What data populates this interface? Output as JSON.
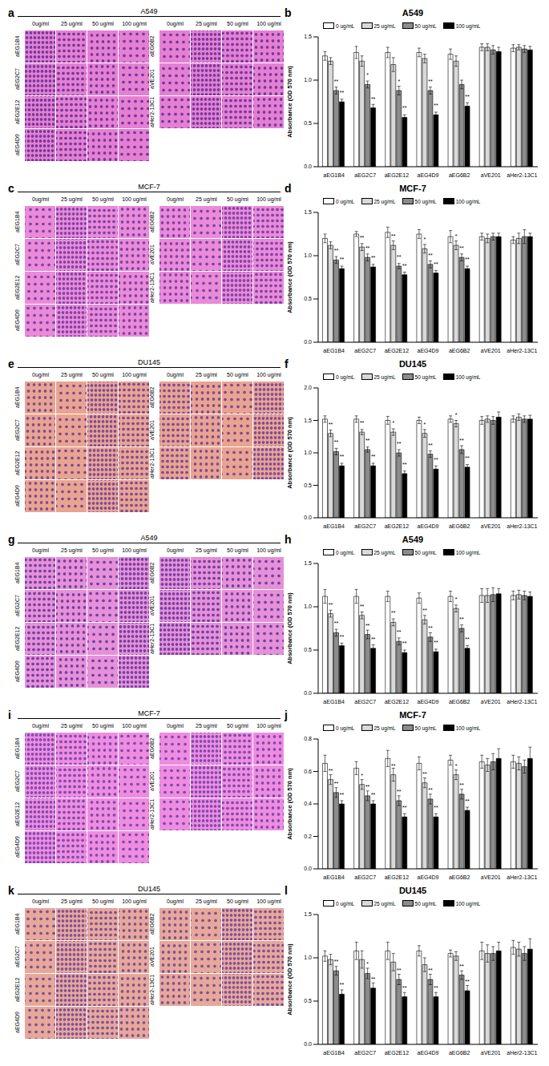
{
  "image_panels": [
    {
      "letter": "a",
      "title": "A549",
      "columns": [
        "0ug/ml",
        "25 ug/ml",
        "50 ug/ml",
        "100 ug/ml"
      ],
      "left_rows": [
        "aEG1B4",
        "aEG2C7",
        "aEG2E12",
        "aEG4D9"
      ],
      "right_rows": [
        "aEG6B2",
        "aVE201",
        "aHer2-13C1"
      ]
    },
    {
      "letter": "c",
      "title": "MCF-7",
      "columns": [
        "0ug/ml",
        "25 ug/ml",
        "50 ug/ml",
        "100 ug/ml"
      ],
      "left_rows": [
        "aEG1B4",
        "aEG2C7",
        "aEG2E12",
        "aEG4D9"
      ],
      "right_rows": [
        "aEG6B2",
        "aVE201",
        "aHer2-13C1"
      ]
    },
    {
      "letter": "e",
      "title": "DU145",
      "columns": [
        "0ug/ml",
        "25 ug/ml",
        "50 ug/ml",
        "100 ug/ml"
      ],
      "left_rows": [
        "aEG1B4",
        "aEG2C7",
        "aEG2E12",
        "aEG4D9"
      ],
      "right_rows": [
        "aEG6B2",
        "aVE201",
        "aHer2-13C1"
      ]
    },
    {
      "letter": "g",
      "title": "A549",
      "columns": [
        "0ug/ml",
        "25 ug/ml",
        "50 ug/ml",
        "100 ug/ml"
      ],
      "left_rows": [
        "aEG1B4",
        "aEG2C7",
        "aEG2E12",
        "aEG4D9"
      ],
      "right_rows": [
        "aEG6B2",
        "aVE201",
        "aHer2-13C1"
      ]
    },
    {
      "letter": "i",
      "title": "MCF-7",
      "columns": [
        "0ug/ml",
        "25 ug/ml",
        "50 ug/ml",
        "100 ug/ml"
      ],
      "left_rows": [
        "aEG1B4",
        "aEG2C7",
        "aEG2E12",
        "aEG4D9"
      ],
      "right_rows": [
        "aEG6B2",
        "aVE201",
        "aHer2-13C1"
      ]
    },
    {
      "letter": "k",
      "title": "DU145",
      "columns": [
        "0ug/ml",
        "25 ug/ml",
        "50 ug/ml",
        "100 ug/ml"
      ],
      "left_rows": [
        "aEG1B4",
        "aEG2C7",
        "aEG2E12",
        "aEG4D9"
      ],
      "right_rows": [
        "aEG6B2",
        "aVE201",
        "aHer2-13C1"
      ]
    }
  ],
  "chart_data": [
    {
      "letter": "b",
      "type": "bar",
      "title": "A549",
      "y_label": "Absorbance (OD 570 nm)",
      "legend": "top-left",
      "categories": [
        "aEG1B4",
        "aEG2C7",
        "aEG2E12",
        "aEG4D9",
        "aEG6B2",
        "aVE201",
        "aHer2-13C1"
      ],
      "ylim": [
        0,
        1.5
      ],
      "yticks": [
        {
          "value": 0,
          "label": "0.0"
        },
        {
          "value": 0.5,
          "label": "0.5"
        },
        {
          "value": 1,
          "label": "1.0"
        },
        {
          "value": 1.5,
          "label": "1.5"
        }
      ],
      "series": [
        {
          "name": "0 ug/mL",
          "color": "#ffffff",
          "values": [
            1.28,
            1.32,
            1.32,
            1.32,
            1.3,
            1.38,
            1.37
          ],
          "errors": [
            0.05,
            0.07,
            0.06,
            0.05,
            0.06,
            0.04,
            0.04
          ],
          "significance": [
            null,
            null,
            null,
            null,
            null,
            null,
            null
          ]
        },
        {
          "name": "25 ug/mL",
          "color": "#d9d9d9",
          "values": [
            1.22,
            1.22,
            1.18,
            1.25,
            1.22,
            1.38,
            1.38
          ],
          "errors": [
            0.04,
            0.06,
            0.08,
            0.05,
            0.06,
            0.04,
            0.03
          ],
          "significance": [
            null,
            null,
            null,
            null,
            null,
            null,
            null
          ]
        },
        {
          "name": "50 ug/mL",
          "color": "#8c8c8c",
          "values": [
            0.88,
            0.95,
            0.88,
            0.88,
            0.95,
            1.35,
            1.36
          ],
          "errors": [
            0.04,
            0.04,
            0.05,
            0.04,
            0.05,
            0.05,
            0.04
          ],
          "significance": [
            "**",
            "*",
            "*",
            "**",
            null,
            null,
            null
          ]
        },
        {
          "name": "100 ug/mL",
          "color": "#000000",
          "values": [
            0.75,
            0.68,
            0.57,
            0.6,
            0.7,
            1.33,
            1.35
          ],
          "errors": [
            0.03,
            0.04,
            0.03,
            0.03,
            0.04,
            0.05,
            0.04
          ],
          "significance": [
            "**",
            "**",
            "**",
            "**",
            "**",
            null,
            null
          ]
        }
      ]
    },
    {
      "letter": "d",
      "type": "bar",
      "title": "MCF-7",
      "y_label": "Absorbance (OD 570 nm)",
      "legend": "top-left",
      "categories": [
        "aEG1B4",
        "aEG2C7",
        "aEG2E12",
        "aEG4D9",
        "aEG6B2",
        "aVE201",
        "aHer2-13C1"
      ],
      "ylim": [
        0,
        1.5
      ],
      "yticks": [
        {
          "value": 0,
          "label": "0.0"
        },
        {
          "value": 0.5,
          "label": "0.5"
        },
        {
          "value": 1,
          "label": "1.0"
        },
        {
          "value": 1.5,
          "label": "1.5"
        }
      ],
      "series": [
        {
          "name": "0 ug/mL",
          "color": "#ffffff",
          "values": [
            1.2,
            1.25,
            1.27,
            1.25,
            1.22,
            1.22,
            1.18
          ],
          "errors": [
            0.05,
            0.03,
            0.06,
            0.05,
            0.07,
            0.04,
            0.04
          ],
          "significance": [
            null,
            null,
            null,
            null,
            null,
            null,
            null
          ]
        },
        {
          "name": "25 ug/mL",
          "color": "#d9d9d9",
          "values": [
            1.12,
            1.1,
            1.12,
            1.08,
            1.12,
            1.2,
            1.2
          ],
          "errors": [
            0.04,
            0.04,
            0.05,
            0.05,
            0.05,
            0.05,
            0.06
          ],
          "significance": [
            null,
            "**",
            "**",
            "*",
            "*",
            null,
            null
          ]
        },
        {
          "name": "50 ug/mL",
          "color": "#8c8c8c",
          "values": [
            0.95,
            0.98,
            0.88,
            0.9,
            0.98,
            1.22,
            1.22
          ],
          "errors": [
            0.04,
            0.04,
            0.03,
            0.04,
            0.04,
            0.04,
            0.08
          ],
          "significance": [
            "**",
            "**",
            "**",
            "**",
            "**",
            null,
            null
          ]
        },
        {
          "name": "100 ug/mL",
          "color": "#000000",
          "values": [
            0.85,
            0.87,
            0.78,
            0.8,
            0.85,
            1.22,
            1.22
          ],
          "errors": [
            0.03,
            0.03,
            0.03,
            0.03,
            0.03,
            0.04,
            0.04
          ],
          "significance": [
            "**",
            "**",
            "**",
            "**",
            "**",
            null,
            null
          ]
        }
      ]
    },
    {
      "letter": "f",
      "type": "bar",
      "title": "DU145",
      "y_label": "Absorbance (OD 570 nm)",
      "legend": "top-left",
      "categories": [
        "aEG1B4",
        "aEG2C7",
        "aEG2E12",
        "aEG4D9",
        "aEG6B2",
        "aVE201",
        "aHer2-13C1"
      ],
      "ylim": [
        0,
        2
      ],
      "yticks": [
        {
          "value": 0,
          "label": "0.0"
        },
        {
          "value": 0.5,
          "label": "0.5"
        },
        {
          "value": 1,
          "label": "1.0"
        },
        {
          "value": 1.5,
          "label": "1.5"
        },
        {
          "value": 2,
          "label": "2.0"
        }
      ],
      "series": [
        {
          "name": "0 ug/mL",
          "color": "#ffffff",
          "values": [
            1.52,
            1.52,
            1.5,
            1.5,
            1.52,
            1.5,
            1.52
          ],
          "errors": [
            0.05,
            0.05,
            0.06,
            0.05,
            0.05,
            0.06,
            0.05
          ],
          "significance": [
            null,
            null,
            null,
            null,
            null,
            null,
            null
          ]
        },
        {
          "name": "25 ug/mL",
          "color": "#d9d9d9",
          "values": [
            1.3,
            1.32,
            1.32,
            1.3,
            1.45,
            1.52,
            1.55
          ],
          "errors": [
            0.05,
            0.04,
            0.05,
            0.06,
            0.05,
            0.05,
            0.05
          ],
          "significance": [
            "**",
            "**",
            "*",
            "*",
            "*",
            null,
            null
          ]
        },
        {
          "name": "50 ug/mL",
          "color": "#8c8c8c",
          "values": [
            1.02,
            1.05,
            1.0,
            0.98,
            1.05,
            1.5,
            1.52
          ],
          "errors": [
            0.05,
            0.04,
            0.05,
            0.05,
            0.06,
            0.06,
            0.05
          ],
          "significance": [
            "**",
            "**",
            "**",
            "**",
            "**",
            null,
            null
          ]
        },
        {
          "name": "100 ug/mL",
          "color": "#000000",
          "values": [
            0.8,
            0.8,
            0.68,
            0.75,
            0.78,
            1.55,
            1.52
          ],
          "errors": [
            0.04,
            0.04,
            0.04,
            0.05,
            0.04,
            0.08,
            0.06
          ],
          "significance": [
            "**",
            "**",
            "**",
            "**",
            "**",
            null,
            null
          ]
        }
      ]
    },
    {
      "letter": "h",
      "type": "bar",
      "title": "A549",
      "y_label": "Absorbance (OD 570 nm)",
      "legend": "top-left",
      "categories": [
        "aEG1B4",
        "aEG2C7",
        "aEG2E12",
        "aEG4D9",
        "aEG6B2",
        "aVE201",
        "aHer2-13C1"
      ],
      "ylim": [
        0,
        1.5
      ],
      "yticks": [
        {
          "value": 0,
          "label": "0.0"
        },
        {
          "value": 0.5,
          "label": "0.5"
        },
        {
          "value": 1,
          "label": "1.0"
        },
        {
          "value": 1.5,
          "label": "1.5"
        }
      ],
      "series": [
        {
          "name": "0 ug/mL",
          "color": "#ffffff",
          "values": [
            1.12,
            1.12,
            1.12,
            1.1,
            1.12,
            1.13,
            1.13
          ],
          "errors": [
            0.08,
            0.08,
            0.06,
            0.06,
            0.06,
            0.08,
            0.05
          ],
          "significance": [
            null,
            null,
            null,
            null,
            null,
            null,
            null
          ]
        },
        {
          "name": "25 ug/mL",
          "color": "#d9d9d9",
          "values": [
            0.92,
            0.9,
            0.82,
            0.85,
            0.98,
            1.13,
            1.14
          ],
          "errors": [
            0.04,
            0.04,
            0.04,
            0.05,
            0.04,
            0.08,
            0.05
          ],
          "significance": [
            "**",
            "**",
            "**",
            "**",
            "*",
            null,
            null
          ]
        },
        {
          "name": "50 ug/mL",
          "color": "#8c8c8c",
          "values": [
            0.7,
            0.68,
            0.6,
            0.65,
            0.75,
            1.14,
            1.13
          ],
          "errors": [
            0.04,
            0.05,
            0.04,
            0.05,
            0.04,
            0.08,
            0.05
          ],
          "significance": [
            "**",
            "**",
            "**",
            "**",
            "**",
            null,
            null
          ]
        },
        {
          "name": "100 ug/mL",
          "color": "#000000",
          "values": [
            0.55,
            0.52,
            0.47,
            0.48,
            0.52,
            1.15,
            1.12
          ],
          "errors": [
            0.03,
            0.04,
            0.03,
            0.03,
            0.03,
            0.06,
            0.05
          ],
          "significance": [
            "**",
            "**",
            "**",
            "**",
            "**",
            null,
            null
          ]
        }
      ]
    },
    {
      "letter": "j",
      "type": "bar",
      "title": "MCF-7",
      "y_label": "Absorbance (OD 570 nm)",
      "legend": "top-left",
      "categories": [
        "aEG1B4",
        "aEG2C7",
        "aEG2E12",
        "aEG4D9",
        "aEG6B2",
        "aVE201",
        "aHer2-13C1"
      ],
      "ylim": [
        0,
        0.8
      ],
      "yticks": [
        {
          "value": 0,
          "label": "0.0"
        },
        {
          "value": 0.2,
          "label": "0.2"
        },
        {
          "value": 0.4,
          "label": "0.4"
        },
        {
          "value": 0.6,
          "label": "0.6"
        },
        {
          "value": 0.8,
          "label": "0.8"
        }
      ],
      "series": [
        {
          "name": "0 ug/mL",
          "color": "#ffffff",
          "values": [
            0.65,
            0.62,
            0.68,
            0.65,
            0.67,
            0.66,
            0.66
          ],
          "errors": [
            0.05,
            0.04,
            0.05,
            0.04,
            0.03,
            0.04,
            0.04
          ],
          "significance": [
            null,
            null,
            null,
            null,
            null,
            null,
            null
          ]
        },
        {
          "name": "25 ug/mL",
          "color": "#d9d9d9",
          "values": [
            0.55,
            0.52,
            0.58,
            0.53,
            0.58,
            0.64,
            0.65
          ],
          "errors": [
            0.03,
            0.03,
            0.04,
            0.03,
            0.03,
            0.04,
            0.04
          ],
          "significance": [
            "**",
            "*",
            "**",
            "**",
            "*",
            null,
            null
          ]
        },
        {
          "name": "50 ug/mL",
          "color": "#8c8c8c",
          "values": [
            0.47,
            0.45,
            0.42,
            0.43,
            0.46,
            0.66,
            0.63
          ],
          "errors": [
            0.03,
            0.03,
            0.03,
            0.03,
            0.03,
            0.05,
            0.04
          ],
          "significance": [
            "**",
            "**",
            "**",
            "**",
            "**",
            null,
            null
          ]
        },
        {
          "name": "100 ug/mL",
          "color": "#000000",
          "values": [
            0.4,
            0.4,
            0.32,
            0.32,
            0.36,
            0.68,
            0.68
          ],
          "errors": [
            0.02,
            0.02,
            0.02,
            0.02,
            0.02,
            0.06,
            0.07
          ],
          "significance": [
            "**",
            "**",
            "**",
            "**",
            "**",
            null,
            null
          ]
        }
      ]
    },
    {
      "letter": "l",
      "type": "bar",
      "title": "DU145",
      "y_label": "Absorbance (OD 570 nm)",
      "legend": "top-left",
      "categories": [
        "aEG1B4",
        "aEG2C7",
        "aEG2E12",
        "aEG4D9",
        "aEG6B2",
        "aVE201",
        "aHer2-13C1"
      ],
      "ylim": [
        0,
        1.5
      ],
      "yticks": [
        {
          "value": 0,
          "label": "0.0"
        },
        {
          "value": 0.5,
          "label": "0.5"
        },
        {
          "value": 1,
          "label": "1.0"
        },
        {
          "value": 1.5,
          "label": "1.5"
        }
      ],
      "series": [
        {
          "name": "0 ug/mL",
          "color": "#ffffff",
          "values": [
            1.02,
            1.08,
            1.08,
            1.08,
            1.05,
            1.08,
            1.12
          ],
          "errors": [
            0.06,
            0.1,
            0.1,
            0.06,
            0.04,
            0.1,
            0.08
          ],
          "significance": [
            null,
            null,
            null,
            null,
            null,
            null,
            null
          ]
        },
        {
          "name": "25 ug/mL",
          "color": "#d9d9d9",
          "values": [
            0.98,
            0.98,
            0.95,
            0.92,
            1.02,
            1.05,
            1.1
          ],
          "errors": [
            0.06,
            0.1,
            0.1,
            0.08,
            0.05,
            0.1,
            0.08
          ],
          "significance": [
            null,
            null,
            null,
            null,
            null,
            null,
            null
          ]
        },
        {
          "name": "50 ug/mL",
          "color": "#8c8c8c",
          "values": [
            0.85,
            0.82,
            0.75,
            0.75,
            0.8,
            1.05,
            1.05
          ],
          "errors": [
            0.05,
            0.06,
            0.06,
            0.06,
            0.05,
            0.08,
            0.08
          ],
          "significance": [
            "**",
            "*",
            "**",
            "**",
            "**",
            null,
            null
          ]
        },
        {
          "name": "100 ug/mL",
          "color": "#000000",
          "values": [
            0.58,
            0.65,
            0.55,
            0.55,
            0.62,
            1.08,
            1.1
          ],
          "errors": [
            0.05,
            0.06,
            0.05,
            0.05,
            0.06,
            0.1,
            0.12
          ],
          "significance": [
            "**",
            "**",
            "**",
            "**",
            "**",
            null,
            null
          ]
        }
      ]
    }
  ]
}
